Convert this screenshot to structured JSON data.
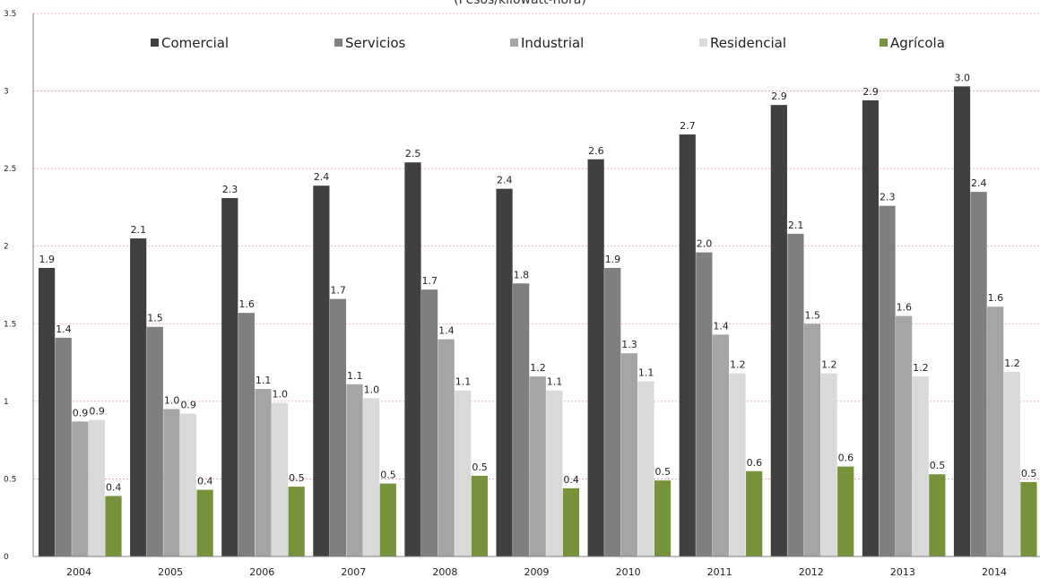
{
  "chart_data": {
    "type": "bar",
    "title": "(Pesos/kilowatt-hora)",
    "xlabel": "",
    "ylabel": "",
    "ylim": [
      0,
      3.5
    ],
    "yticks": [
      "0",
      "0.5",
      "1",
      "1.5",
      "2",
      "2.5",
      "3",
      "3.5"
    ],
    "grid": true,
    "legend_position": "top",
    "categories": [
      "2004",
      "2005",
      "2006",
      "2007",
      "2008",
      "2009",
      "2010",
      "2011",
      "2012",
      "2013",
      "2014"
    ],
    "series": [
      {
        "name": "Comercial",
        "color": "#404040",
        "values": [
          1.86,
          2.05,
          2.31,
          2.39,
          2.54,
          2.37,
          2.56,
          2.72,
          2.91,
          2.94,
          3.03
        ],
        "labels": [
          "1.9",
          "2.1",
          "2.3",
          "2.4",
          "2.5",
          "2.4",
          "2.6",
          "2.7",
          "2.9",
          "2.9",
          "3.0"
        ]
      },
      {
        "name": "Servicios",
        "color": "#7f7f7f",
        "values": [
          1.41,
          1.48,
          1.57,
          1.66,
          1.72,
          1.76,
          1.86,
          1.96,
          2.08,
          2.26,
          2.35
        ],
        "labels": [
          "1.4",
          "1.5",
          "1.6",
          "1.7",
          "1.7",
          "1.8",
          "1.9",
          "2.0",
          "2.1",
          "2.3",
          "2.4"
        ]
      },
      {
        "name": "Industrial",
        "color": "#a5a5a5",
        "values": [
          0.87,
          0.95,
          1.08,
          1.11,
          1.4,
          1.16,
          1.31,
          1.43,
          1.5,
          1.55,
          1.61
        ],
        "labels": [
          "0.9",
          "1.0",
          "1.1",
          "1.1",
          "1.4",
          "1.2",
          "1.3",
          "1.4",
          "1.5",
          "1.6",
          "1.6"
        ]
      },
      {
        "name": "Residencial",
        "color": "#d9d9d9",
        "values": [
          0.88,
          0.92,
          0.99,
          1.02,
          1.07,
          1.07,
          1.13,
          1.18,
          1.18,
          1.16,
          1.19
        ],
        "labels": [
          "0.9",
          "0.9",
          "1.0",
          "1.0",
          "1.1",
          "1.1",
          "1.1",
          "1.2",
          "1.2",
          "1.2",
          "1.2"
        ]
      },
      {
        "name": "Agrícola",
        "color": "#76933c",
        "values": [
          0.39,
          0.43,
          0.45,
          0.47,
          0.52,
          0.44,
          0.49,
          0.55,
          0.58,
          0.53,
          0.48
        ],
        "labels": [
          "0.4",
          "0.4",
          "0.5",
          "0.5",
          "0.5",
          "0.4",
          "0.5",
          "0.6",
          "0.6",
          "0.5",
          "0.5"
        ]
      }
    ]
  }
}
